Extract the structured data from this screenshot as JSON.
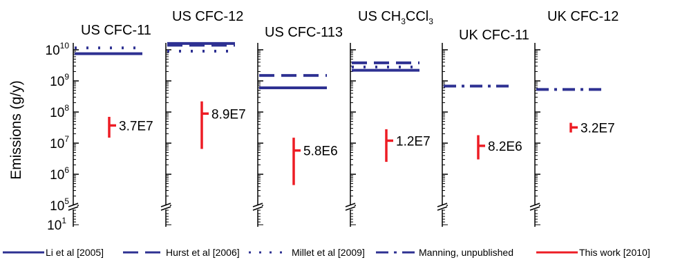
{
  "chart_data": {
    "type": "line",
    "ylabel": "Emissions (g/y)",
    "y_scale": "log",
    "y_ticks": [
      {
        "value": 10000000000.0,
        "label_base": "10",
        "label_exp": "10"
      },
      {
        "value": 1000000000.0,
        "label_base": "10",
        "label_exp": "9"
      },
      {
        "value": 100000000.0,
        "label_base": "10",
        "label_exp": "8"
      },
      {
        "value": 10000000.0,
        "label_base": "10",
        "label_exp": "7"
      },
      {
        "value": 1000000.0,
        "label_base": "10",
        "label_exp": "6"
      },
      {
        "value": 100000.0,
        "label_base": "10",
        "label_exp": "5"
      }
    ],
    "y_lower_tick": {
      "label_base": "10",
      "label_exp": "1"
    },
    "axis_break": true,
    "colors": {
      "reference": "#2e3192",
      "this_work": "#ed1c24"
    },
    "panels": [
      {
        "title": "US CFC-11",
        "reference": [
          {
            "source": "Li et al [2005]",
            "value": 7500000000.0
          },
          {
            "source": "Millet et al [2009]",
            "value": 11500000000.0
          }
        ],
        "this_work": {
          "value": 37000000.0,
          "low": 15000000.0,
          "high": 70000000.0,
          "label": "3.7E7"
        }
      },
      {
        "title": "US CFC-12",
        "reference": [
          {
            "source": "Li et al [2005]",
            "value": 16000000000.0
          },
          {
            "source": "Hurst et al [2006]",
            "value": 14000000000.0
          },
          {
            "source": "Millet et al [2009]",
            "value": 9000000000.0
          }
        ],
        "this_work": {
          "value": 89000000.0,
          "low": 6500000.0,
          "high": 220000000.0,
          "label": "8.9E7"
        }
      },
      {
        "title": "US CFC-113",
        "reference": [
          {
            "source": "Li et al [2005]",
            "value": 600000000.0
          },
          {
            "source": "Hurst et al [2006]",
            "value": 1500000000.0
          }
        ],
        "this_work": {
          "value": 5800000.0,
          "low": 450000.0,
          "high": 15000000.0,
          "label": "5.8E6"
        }
      },
      {
        "title_parts": [
          "US CH",
          "3",
          "CCl",
          "3"
        ],
        "title": "US CH3CCl3",
        "reference": [
          {
            "source": "Li et al [2005]",
            "value": 2200000000.0
          },
          {
            "source": "Hurst et al [2006]",
            "value": 3800000000.0
          },
          {
            "source": "Millet et al [2009]",
            "value": 2800000000.0
          }
        ],
        "this_work": {
          "value": 12000000.0,
          "low": 2500000.0,
          "high": 28000000.0,
          "label": "1.2E7"
        }
      },
      {
        "title": "UK CFC-11",
        "reference": [
          {
            "source": "Manning, unpublished",
            "value": 680000000.0
          }
        ],
        "this_work": {
          "value": 8200000.0,
          "low": 3000000.0,
          "high": 18000000.0,
          "label": "8.2E6"
        }
      },
      {
        "title": "UK CFC-12",
        "reference": [
          {
            "source": "Manning, unpublished",
            "value": 530000000.0
          }
        ],
        "this_work": {
          "value": 32000000.0,
          "low": 22000000.0,
          "high": 45000000.0,
          "label": "3.2E7"
        }
      }
    ],
    "legend": [
      {
        "label": "Li et al [2005]",
        "style": "solid",
        "color": "#2e3192"
      },
      {
        "label": "Hurst et al [2006]",
        "style": "dashed",
        "color": "#2e3192"
      },
      {
        "label": "Millet et al [2009]",
        "style": "dotted",
        "color": "#2e3192"
      },
      {
        "label": "Manning, unpublished",
        "style": "dashdot",
        "color": "#2e3192"
      },
      {
        "label": "This work [2010]",
        "style": "solid",
        "color": "#ed1c24"
      }
    ]
  }
}
